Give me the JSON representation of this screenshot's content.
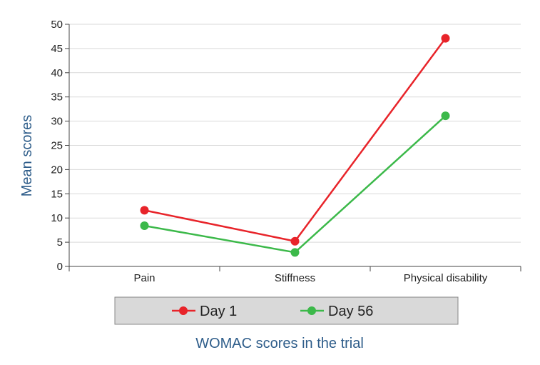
{
  "chart_data": {
    "type": "line",
    "categories": [
      "Pain",
      "Stiffness",
      "Physical disability"
    ],
    "series": [
      {
        "name": "Day 1",
        "values": [
          11.6,
          5.2,
          47.1
        ],
        "color": "#e8242a"
      },
      {
        "name": "Day 56",
        "values": [
          8.4,
          2.9,
          31.1
        ],
        "color": "#3cb94a"
      }
    ],
    "title": "",
    "xlabel": "WOMAC scores in the trial",
    "ylabel": "Mean scores",
    "ylim": [
      0,
      50
    ],
    "yticks": [
      "0",
      "5",
      "10",
      "15",
      "20",
      "25",
      "30",
      "35",
      "40",
      "45",
      "50"
    ],
    "grid": true,
    "legend_position": "bottom",
    "label_color": "#2e5d8a",
    "legend_background": "#d9d9d9"
  }
}
